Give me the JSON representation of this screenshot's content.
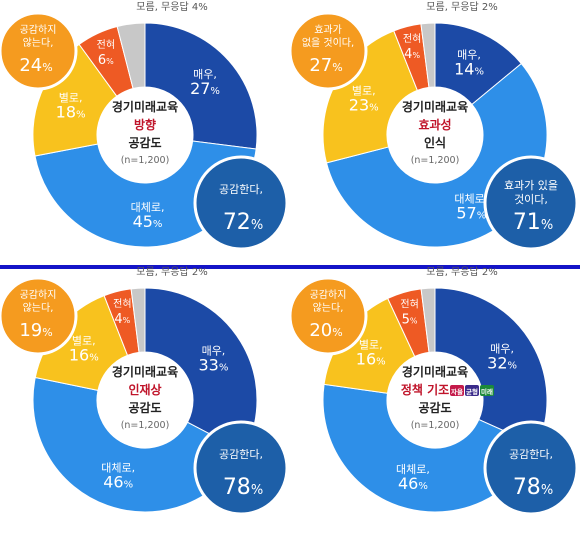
{
  "colors": {
    "dark_blue": "#1c4aa6",
    "light_blue": "#2e8fe8",
    "yellow": "#f8c21e",
    "orange_red": "#ee5a24",
    "gray": "#c8c8c8",
    "bubble_orange": "#f59b1f",
    "bubble_blue": "#1d5fa8",
    "divider": "#1414c8",
    "accent_red": "#c0142a"
  },
  "policy_tags": [
    "자율",
    "균형",
    "미래"
  ],
  "chart_data": [
    {
      "type": "pie",
      "title_lines": [
        "경기미래교육",
        "방향",
        "공감도",
        "(n=1,200)"
      ],
      "categories": [
        "매우,",
        "대체로,",
        "별로,",
        "전혀,",
        "모름, 무응답"
      ],
      "values": [
        27,
        45,
        18,
        6,
        4
      ],
      "slice_labels": [
        "매우,",
        "대체로,",
        "별로,",
        "전혀",
        "모름, 무응답 4%"
      ],
      "slice_values": [
        "27",
        "45",
        "18",
        "6",
        ""
      ],
      "positive_bubble": {
        "lines": [
          "공감한다,"
        ],
        "value": "72"
      },
      "negative_bubble": {
        "lines": [
          "공감하지",
          "않는다,"
        ],
        "value": "24"
      }
    },
    {
      "type": "pie",
      "title_lines": [
        "경기미래교육",
        "효과성",
        "인식",
        "(n=1,200)"
      ],
      "categories": [
        "매우,",
        "대체로,",
        "별로,",
        "전혀",
        "모름, 무응답"
      ],
      "values": [
        14,
        57,
        23,
        4,
        2
      ],
      "slice_labels": [
        "매우,",
        "대체로,",
        "별로,",
        "전혀",
        "모름, 무응답 2%"
      ],
      "slice_values": [
        "14",
        "57",
        "23",
        "4",
        ""
      ],
      "positive_bubble": {
        "lines": [
          "효과가 있을",
          "것이다,"
        ],
        "value": "71"
      },
      "negative_bubble": {
        "lines": [
          "효과가",
          "없을 것이다,"
        ],
        "value": "27"
      }
    },
    {
      "type": "pie",
      "title_lines": [
        "경기미래교육",
        "인재상",
        "공감도",
        "(n=1,200)"
      ],
      "categories": [
        "매우,",
        "대체로,",
        "별로,",
        "전혀",
        "모름, 무응답"
      ],
      "values": [
        33,
        46,
        16,
        4,
        2
      ],
      "slice_labels": [
        "매우,",
        "대체로,",
        "별로,",
        "전혀",
        "모름, 무응답 2%"
      ],
      "slice_values": [
        "33",
        "46",
        "16",
        "4",
        ""
      ],
      "positive_bubble": {
        "lines": [
          "공감한다,"
        ],
        "value": "78"
      },
      "negative_bubble": {
        "lines": [
          "공감하지",
          "않는다,"
        ],
        "value": "19"
      }
    },
    {
      "type": "pie",
      "title_lines": [
        "경기미래교육",
        "정책 기조",
        "공감도",
        "(n=1,200)"
      ],
      "categories": [
        "매우,",
        "대체로,",
        "별로,",
        "전혀",
        "모름, 무응답"
      ],
      "values": [
        32,
        46,
        16,
        5,
        2
      ],
      "slice_labels": [
        "매우,",
        "대체로,",
        "별로,",
        "전혀",
        "모름, 무응답 2%"
      ],
      "slice_values": [
        "32",
        "46",
        "16",
        "5",
        ""
      ],
      "positive_bubble": {
        "lines": [
          "공감한다,"
        ],
        "value": "78"
      },
      "negative_bubble": {
        "lines": [
          "공감하지",
          "않는다,"
        ],
        "value": "20"
      }
    }
  ]
}
